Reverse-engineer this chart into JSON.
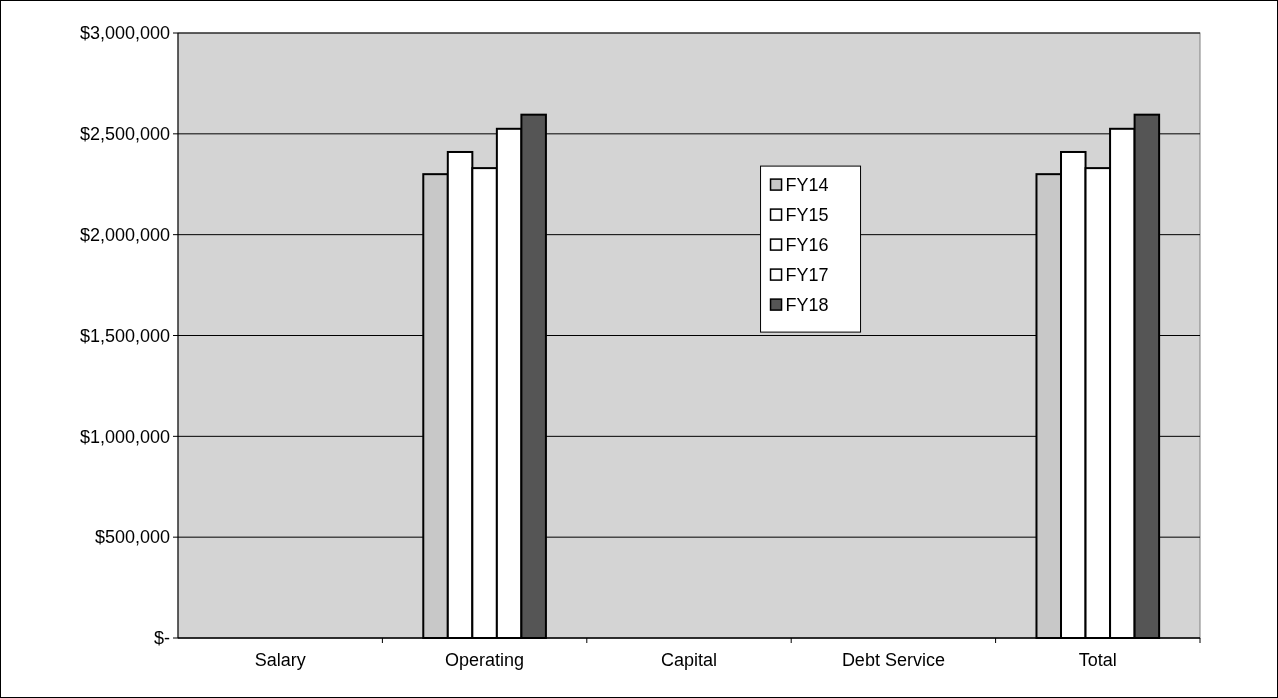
{
  "chart_data": {
    "type": "bar",
    "categories": [
      "Salary",
      "Operating",
      "Capital",
      "Debt Service",
      "Total"
    ],
    "series": [
      {
        "name": "FY14",
        "color": "#c8c8c8",
        "values": [
          0,
          2300000,
          0,
          0,
          2300000
        ]
      },
      {
        "name": "FY15",
        "color": "#ffffff",
        "values": [
          0,
          2410000,
          0,
          0,
          2410000
        ]
      },
      {
        "name": "FY16",
        "color": "#ffffff",
        "values": [
          0,
          2330000,
          0,
          0,
          2330000
        ]
      },
      {
        "name": "FY17",
        "color": "#ffffff",
        "values": [
          0,
          2525000,
          0,
          0,
          2525000
        ]
      },
      {
        "name": "FY18",
        "color": "#555555",
        "values": [
          0,
          2595000,
          0,
          0,
          2595000
        ]
      }
    ],
    "ylim": [
      0,
      3000000
    ],
    "yticks": [
      {
        "value": 0,
        "label": "$-"
      },
      {
        "value": 500000,
        "label": "$500,000"
      },
      {
        "value": 1000000,
        "label": "$1,000,000"
      },
      {
        "value": 1500000,
        "label": "$1,500,000"
      },
      {
        "value": 2000000,
        "label": "$2,000,000"
      },
      {
        "value": 2500000,
        "label": "$2,500,000"
      },
      {
        "value": 3000000,
        "label": "$3,000,000"
      }
    ],
    "grid": "y",
    "legend": "center"
  }
}
